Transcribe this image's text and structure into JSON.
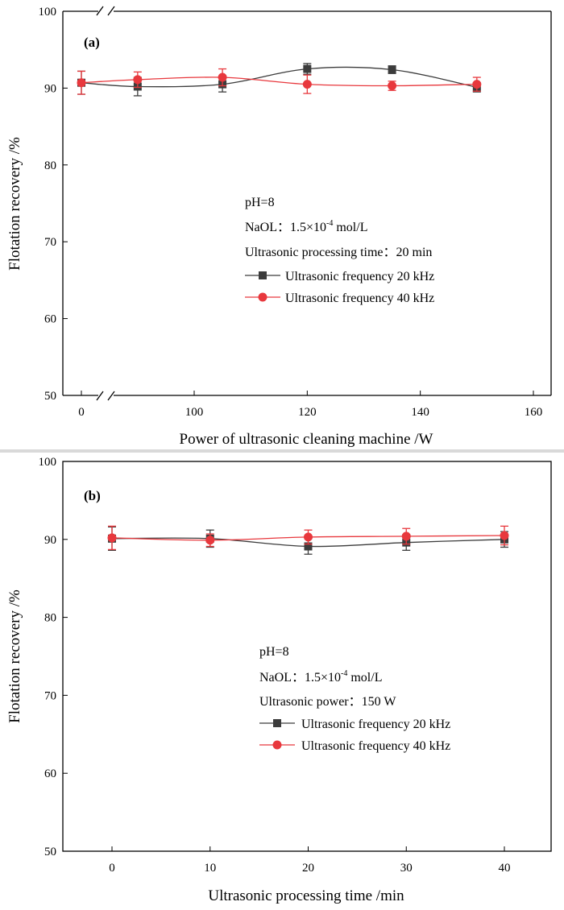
{
  "chart_data": [
    {
      "type": "line",
      "panel_label": "(a)",
      "xlabel": "Power of ultrasonic cleaning machine /W",
      "ylabel": "Flotation recovery /%",
      "xlim": [
        0,
        160
      ],
      "ylim": [
        50,
        100
      ],
      "x_ticks": [
        "0",
        "100",
        "120",
        "140",
        "160"
      ],
      "y_ticks": [
        "50",
        "60",
        "70",
        "80",
        "90",
        "100"
      ],
      "x_break": true,
      "annotations": {
        "ph": "pH=8",
        "naol_prefix": "NaOL：1.5×10",
        "naol_exp": "-4",
        "naol_suffix": " mol/L",
        "condition": "Ultrasonic processing time：20 min"
      },
      "legend": {
        "position": "middle-right"
      },
      "series": [
        {
          "name": "Ultrasonic frequency 20 kHz",
          "marker": "square",
          "color": "#3c3c3c",
          "x": [
            0,
            90,
            105,
            120,
            135,
            150
          ],
          "y": [
            90.7,
            90.2,
            90.5,
            92.5,
            92.4,
            90.1
          ],
          "err": [
            1.5,
            1.2,
            1.0,
            0.7,
            0.5,
            0.6
          ]
        },
        {
          "name": "Ultrasonic frequency 40 kHz",
          "marker": "circle",
          "color": "#e8383d",
          "x": [
            0,
            90,
            105,
            120,
            135,
            150
          ],
          "y": [
            90.7,
            91.1,
            91.4,
            90.5,
            90.3,
            90.5
          ],
          "err": [
            1.5,
            1.0,
            1.1,
            1.2,
            0.6,
            0.9
          ]
        }
      ]
    },
    {
      "type": "line",
      "panel_label": "(b)",
      "xlabel": "Ultrasonic processing time /min",
      "ylabel": "Flotation recovery /%",
      "xlim": [
        -5,
        45
      ],
      "ylim": [
        50,
        100
      ],
      "x_ticks": [
        "0",
        "10",
        "20",
        "30",
        "40"
      ],
      "y_ticks": [
        "50",
        "60",
        "70",
        "80",
        "90",
        "100"
      ],
      "annotations": {
        "ph": "pH=8",
        "naol_prefix": "NaOL：1.5×10",
        "naol_exp": "-4",
        "naol_suffix": " mol/L",
        "condition": "Ultrasonic power：150 W"
      },
      "legend": {
        "position": "middle-right"
      },
      "series": [
        {
          "name": "Ultrasonic frequency 20 kHz",
          "marker": "square",
          "color": "#3c3c3c",
          "x": [
            0,
            10,
            20,
            30,
            40
          ],
          "y": [
            90.1,
            90.1,
            89.1,
            89.6,
            90.0
          ],
          "err": [
            1.5,
            1.1,
            1.0,
            1.0,
            1.0
          ]
        },
        {
          "name": "Ultrasonic frequency 40 kHz",
          "marker": "circle",
          "color": "#e8383d",
          "x": [
            0,
            10,
            20,
            30,
            40
          ],
          "y": [
            90.2,
            89.9,
            90.3,
            90.4,
            90.5
          ],
          "err": [
            1.5,
            0.8,
            0.9,
            1.0,
            1.2
          ]
        }
      ]
    }
  ]
}
